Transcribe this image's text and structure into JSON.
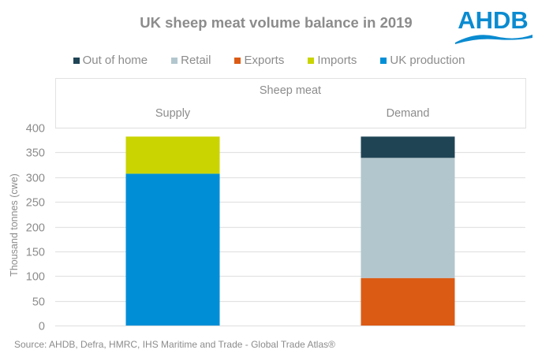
{
  "title": "UK sheep meat volume balance in 2019",
  "logo_text": "AHDB",
  "source": "Source: AHDB, Defra, HMRC, IHS Maritime and Trade - Global Trade Atlas®",
  "colors": {
    "out_of_home": "#1f4555",
    "retail": "#b2c6ce",
    "exports": "#db5b15",
    "imports": "#c9d400",
    "uk_production": "#008fd6",
    "logo": "#0a8bd0",
    "text": "#8c8c8c",
    "grid": "#e2e2e2"
  },
  "legend": [
    {
      "label": "Out of home",
      "key": "out_of_home"
    },
    {
      "label": "Retail",
      "key": "retail"
    },
    {
      "label": "Exports",
      "key": "exports"
    },
    {
      "label": "Imports",
      "key": "imports"
    },
    {
      "label": "UK production",
      "key": "uk_production"
    }
  ],
  "chart_data": {
    "type": "bar",
    "stacked": true,
    "title": "UK sheep meat volume balance in 2019",
    "group_label": "Sheep meat",
    "categories": [
      "Supply",
      "Demand"
    ],
    "ylabel": "Thousand tonnes (cwe)",
    "ylim": [
      0,
      400
    ],
    "yticks": [
      0,
      50,
      100,
      150,
      200,
      250,
      300,
      350,
      400
    ],
    "grid": true,
    "legend_position": "top",
    "series": [
      {
        "name": "UK production",
        "key": "uk_production",
        "values": [
          307,
          0
        ]
      },
      {
        "name": "Imports",
        "key": "imports",
        "values": [
          75,
          0
        ]
      },
      {
        "name": "Exports",
        "key": "exports",
        "values": [
          0,
          96
        ]
      },
      {
        "name": "Retail",
        "key": "retail",
        "values": [
          0,
          243
        ]
      },
      {
        "name": "Out of home",
        "key": "out_of_home",
        "values": [
          0,
          43
        ]
      }
    ]
  }
}
